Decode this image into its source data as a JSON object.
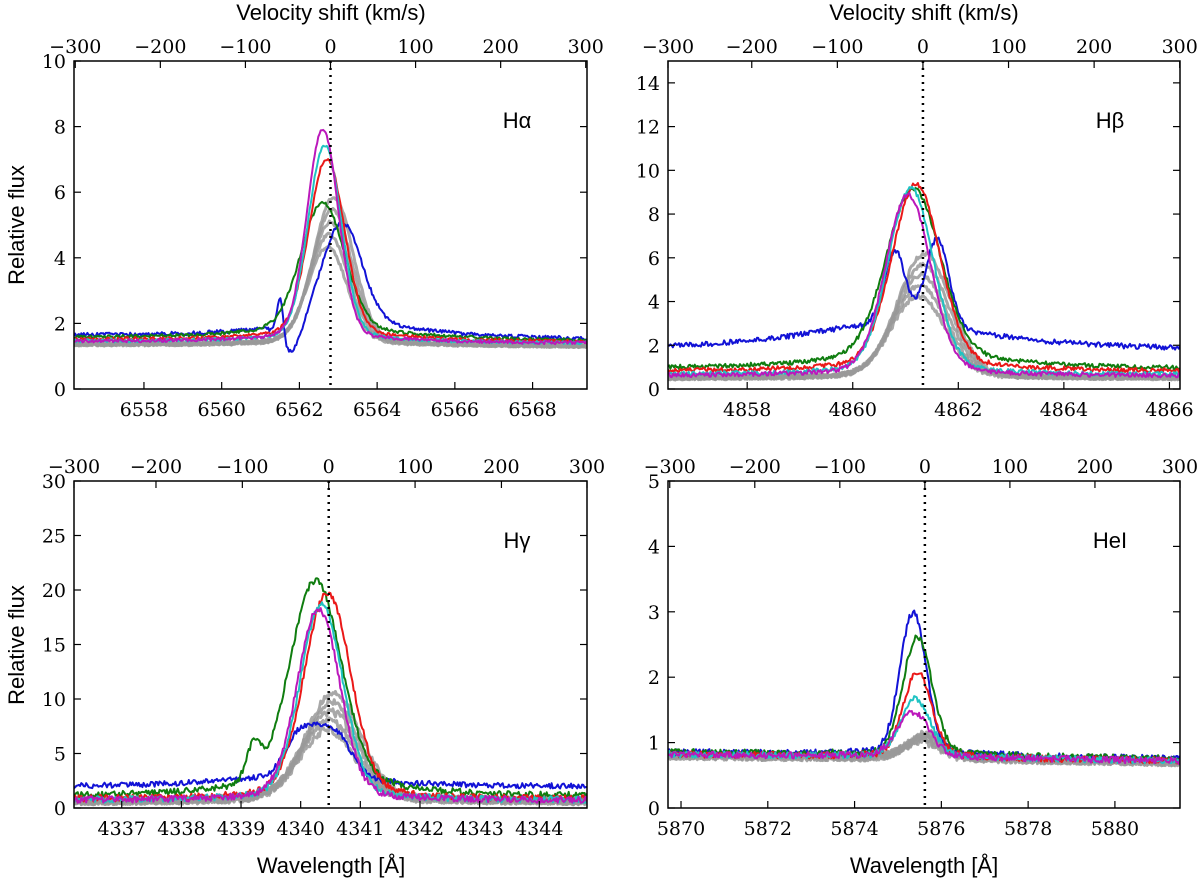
{
  "figure": {
    "shared_xlabel": "Wavelength [Å]",
    "shared_ylabel": "Relative flux",
    "top_axis_label": "Velocity shift (km/s)",
    "series_colors": {
      "blue": "#1212d6",
      "green": "#0f7d0f",
      "red": "#ea1818",
      "cyan": "#1fc3c3",
      "magenta": "#bb18bb",
      "gray": "#999999"
    }
  },
  "chart_data": [
    {
      "type": "line",
      "panel": "top-left",
      "title": "Hα",
      "xlabel": "",
      "ylabel": "Relative flux",
      "top_xlabel": "Velocity shift (km/s)",
      "line_center": 6562.8,
      "xlim": [
        6556.2,
        6569.4
      ],
      "ylim": [
        0,
        10
      ],
      "xticks": [
        "6558",
        "6560",
        "6562",
        "6564",
        "6566",
        "6568"
      ],
      "yticks": [
        "0",
        "2",
        "4",
        "6",
        "8",
        "10"
      ],
      "top_ticks": [
        "−300",
        "−200",
        "−100",
        "0",
        "100",
        "200",
        "300"
      ],
      "label_position": "top-right",
      "series": [
        {
          "name": "blue",
          "color": "#1212d6",
          "baseline": 1.6,
          "noise": 0.06,
          "tilt": -0.12,
          "components": [
            {
              "c": 6563.1,
              "a": 3.0,
              "w": 0.5
            },
            {
              "c": 6561.8,
              "a": -0.9,
              "w": 0.25
            },
            {
              "c": 6561.5,
              "a": 1.3,
              "w": 0.08
            }
          ],
          "wing": 0.9,
          "wing_w": 2.2
        },
        {
          "name": "green",
          "color": "#0f7d0f",
          "baseline": 1.55,
          "noise": 0.05,
          "tilt": -0.1,
          "components": [
            {
              "c": 6562.6,
              "a": 3.7,
              "w": 0.55
            }
          ],
          "wing": 0.8,
          "wing_w": 2.0
        },
        {
          "name": "red",
          "color": "#ea1818",
          "baseline": 1.5,
          "noise": 0.05,
          "tilt": -0.08,
          "components": [
            {
              "c": 6562.7,
              "a": 5.2,
              "w": 0.45
            }
          ],
          "wing": 0.6,
          "wing_w": 1.8
        },
        {
          "name": "cyan",
          "color": "#1fc3c3",
          "baseline": 1.45,
          "noise": 0.05,
          "tilt": -0.06,
          "components": [
            {
              "c": 6562.65,
              "a": 5.7,
              "w": 0.42
            }
          ],
          "wing": 0.5,
          "wing_w": 1.7
        },
        {
          "name": "magenta",
          "color": "#bb18bb",
          "baseline": 1.45,
          "noise": 0.05,
          "tilt": -0.06,
          "components": [
            {
              "c": 6562.6,
              "a": 6.2,
              "w": 0.4
            }
          ],
          "wing": 0.5,
          "wing_w": 1.7
        },
        {
          "name": "gray",
          "color": "#999999",
          "baseline": 1.35,
          "noise": 0.05,
          "tilt": -0.05,
          "components": [
            {
              "c": 6562.8,
              "a": 3.6,
              "w": 0.5
            }
          ],
          "wing": 0.4,
          "wing_w": 1.6,
          "copies": 5
        }
      ]
    },
    {
      "type": "line",
      "panel": "top-right",
      "title": "Hβ",
      "xlabel": "",
      "ylabel": "",
      "top_xlabel": "Velocity shift (km/s)",
      "line_center": 4861.33,
      "xlim": [
        4856.5,
        4866.2
      ],
      "ylim": [
        0,
        15
      ],
      "xticks": [
        "4858",
        "4860",
        "4862",
        "4864",
        "4866"
      ],
      "yticks": [
        "0",
        "2",
        "4",
        "6",
        "8",
        "10",
        "12",
        "14"
      ],
      "top_ticks": [
        "−300",
        "−200",
        "−100",
        "0",
        "100",
        "200",
        "300"
      ],
      "label_position": "top-right",
      "series": [
        {
          "name": "blue",
          "color": "#1212d6",
          "baseline": 1.7,
          "noise": 0.12,
          "tilt": 0.0,
          "components": [
            {
              "c": 4860.8,
              "a": 3.3,
              "w": 0.2
            },
            {
              "c": 4861.6,
              "a": 4.0,
              "w": 0.22
            }
          ],
          "wing": 2.2,
          "wing_w": 2.2
        },
        {
          "name": "green",
          "color": "#0f7d0f",
          "baseline": 0.9,
          "noise": 0.1,
          "tilt": 0.0,
          "components": [
            {
              "c": 4861.15,
              "a": 7.3,
              "w": 0.5
            }
          ],
          "wing": 1.6,
          "wing_w": 1.6
        },
        {
          "name": "red",
          "color": "#ea1818",
          "baseline": 0.8,
          "noise": 0.1,
          "tilt": 0.0,
          "components": [
            {
              "c": 4861.2,
              "a": 7.9,
              "w": 0.45
            }
          ],
          "wing": 1.1,
          "wing_w": 1.4
        },
        {
          "name": "cyan",
          "color": "#1fc3c3",
          "baseline": 0.65,
          "noise": 0.1,
          "tilt": 0.0,
          "components": [
            {
              "c": 4861.1,
              "a": 8.0,
              "w": 0.42
            }
          ],
          "wing": 0.9,
          "wing_w": 1.3
        },
        {
          "name": "magenta",
          "color": "#bb18bb",
          "baseline": 0.6,
          "noise": 0.1,
          "tilt": 0.0,
          "components": [
            {
              "c": 4861.05,
              "a": 7.8,
              "w": 0.42
            }
          ],
          "wing": 0.8,
          "wing_w": 1.3
        },
        {
          "name": "gray",
          "color": "#999999",
          "baseline": 0.5,
          "noise": 0.1,
          "tilt": 0.0,
          "components": [
            {
              "c": 4861.3,
              "a": 4.5,
              "w": 0.5
            }
          ],
          "wing": 0.5,
          "wing_w": 1.2,
          "copies": 5
        }
      ]
    },
    {
      "type": "line",
      "panel": "bottom-left",
      "title": "Hγ",
      "xlabel": "Wavelength [Å]",
      "ylabel": "Relative flux",
      "top_xlabel": "",
      "line_center": 4340.47,
      "xlim": [
        4336.2,
        4344.8
      ],
      "ylim": [
        0,
        30
      ],
      "xticks": [
        "4337",
        "4338",
        "4339",
        "4340",
        "4341",
        "4342",
        "4343",
        "4344"
      ],
      "yticks": [
        "0",
        "5",
        "10",
        "15",
        "20",
        "25",
        "30"
      ],
      "top_ticks": [
        "−300",
        "−200",
        "−100",
        "0",
        "100",
        "200",
        "300"
      ],
      "label_position": "top-right",
      "series": [
        {
          "name": "blue",
          "color": "#1212d6",
          "baseline": 1.9,
          "noise": 0.25,
          "tilt": 0.0,
          "components": [
            {
              "c": 4340.0,
              "a": 3.8,
              "w": 0.25
            },
            {
              "c": 4340.55,
              "a": 4.2,
              "w": 0.28
            }
          ],
          "wing": 1.8,
          "wing_w": 1.5
        },
        {
          "name": "green",
          "color": "#0f7d0f",
          "baseline": 1.0,
          "noise": 0.3,
          "tilt": 0.0,
          "components": [
            {
              "c": 4340.25,
              "a": 17.5,
              "w": 0.42
            },
            {
              "c": 4339.2,
              "a": 3.0,
              "w": 0.12
            }
          ],
          "wing": 4.0,
          "wing_w": 1.2
        },
        {
          "name": "red",
          "color": "#ea1818",
          "baseline": 0.8,
          "noise": 0.3,
          "tilt": 0.0,
          "components": [
            {
              "c": 4340.45,
              "a": 17.5,
              "w": 0.38
            }
          ],
          "wing": 2.5,
          "wing_w": 1.0
        },
        {
          "name": "cyan",
          "color": "#1fc3c3",
          "baseline": 0.7,
          "noise": 0.3,
          "tilt": 0.0,
          "components": [
            {
              "c": 4340.35,
              "a": 16.8,
              "w": 0.35
            }
          ],
          "wing": 2.0,
          "wing_w": 1.0
        },
        {
          "name": "magenta",
          "color": "#bb18bb",
          "baseline": 0.7,
          "noise": 0.3,
          "tilt": 0.0,
          "components": [
            {
              "c": 4340.3,
              "a": 16.5,
              "w": 0.35
            }
          ],
          "wing": 1.8,
          "wing_w": 1.0
        },
        {
          "name": "gray",
          "color": "#999999",
          "baseline": 0.6,
          "noise": 0.35,
          "tilt": 0.0,
          "components": [
            {
              "c": 4340.5,
              "a": 7.5,
              "w": 0.45
            }
          ],
          "wing": 1.5,
          "wing_w": 1.0,
          "copies": 5
        }
      ]
    },
    {
      "type": "line",
      "panel": "bottom-right",
      "title": "HeI",
      "xlabel": "Wavelength [Å]",
      "ylabel": "",
      "top_xlabel": "",
      "line_center": 5875.62,
      "xlim": [
        5869.7,
        5881.5
      ],
      "ylim": [
        0,
        5
      ],
      "xticks": [
        "5870",
        "5872",
        "5874",
        "5876",
        "5878",
        "5880"
      ],
      "yticks": [
        "0",
        "1",
        "2",
        "3",
        "4",
        "5"
      ],
      "top_ticks": [
        "−300",
        "−200",
        "−100",
        "0",
        "100",
        "200",
        "300"
      ],
      "label_position": "top-right",
      "series": [
        {
          "name": "blue",
          "color": "#1212d6",
          "baseline": 0.85,
          "noise": 0.05,
          "tilt": -0.1,
          "components": [
            {
              "c": 5875.35,
              "a": 2.1,
              "w": 0.3
            }
          ],
          "wing": 0.15,
          "wing_w": 1.5
        },
        {
          "name": "green",
          "color": "#0f7d0f",
          "baseline": 0.85,
          "noise": 0.05,
          "tilt": -0.1,
          "components": [
            {
              "c": 5875.45,
              "a": 1.75,
              "w": 0.33
            }
          ],
          "wing": 0.12,
          "wing_w": 1.5
        },
        {
          "name": "red",
          "color": "#ea1818",
          "baseline": 0.82,
          "noise": 0.05,
          "tilt": -0.1,
          "components": [
            {
              "c": 5875.45,
              "a": 1.25,
              "w": 0.32
            }
          ],
          "wing": 0.1,
          "wing_w": 1.5
        },
        {
          "name": "cyan",
          "color": "#1fc3c3",
          "baseline": 0.82,
          "noise": 0.05,
          "tilt": -0.1,
          "components": [
            {
              "c": 5875.4,
              "a": 0.85,
              "w": 0.34
            }
          ],
          "wing": 0.08,
          "wing_w": 1.5
        },
        {
          "name": "magenta",
          "color": "#bb18bb",
          "baseline": 0.82,
          "noise": 0.05,
          "tilt": -0.1,
          "components": [
            {
              "c": 5875.35,
              "a": 0.65,
              "w": 0.36
            }
          ],
          "wing": 0.08,
          "wing_w": 1.5
        },
        {
          "name": "gray",
          "color": "#999999",
          "baseline": 0.8,
          "noise": 0.06,
          "tilt": -0.1,
          "components": [
            {
              "c": 5875.6,
              "a": 0.3,
              "w": 0.4
            }
          ],
          "wing": 0.05,
          "wing_w": 1.5,
          "copies": 5
        }
      ]
    }
  ]
}
